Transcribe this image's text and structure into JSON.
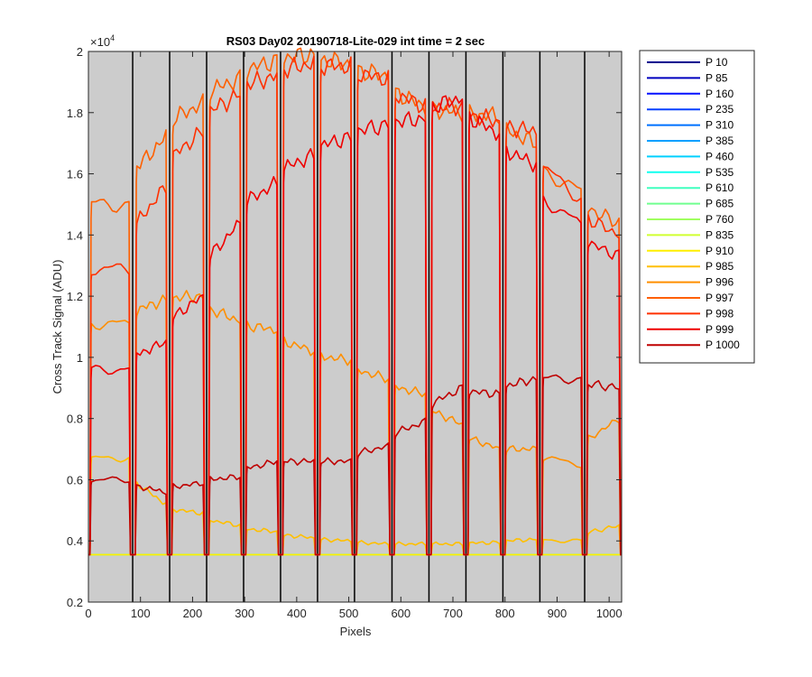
{
  "chart_data": {
    "type": "line",
    "title": "RS03 Day02 20190718-Lite-029 int time = 2 sec",
    "xlabel": "Pixels",
    "ylabel": "Cross Track Signal (ADU)",
    "y_exponent_label": "×10",
    "y_exponent_power": "4",
    "xlim": [
      0,
      1024
    ],
    "ylim": [
      0.2,
      2
    ],
    "y_multiplier": 10000,
    "xticks": [
      "0",
      "100",
      "200",
      "300",
      "400",
      "500",
      "600",
      "700",
      "800",
      "900",
      "1000"
    ],
    "yticks": [
      "0.2",
      "0.4",
      "0.6",
      "0.8",
      "1",
      "1.2",
      "1.4",
      "1.6",
      "1.8",
      "2"
    ],
    "xtick_values": [
      0,
      100,
      200,
      300,
      400,
      500,
      600,
      700,
      800,
      900,
      1000
    ],
    "ytick_values": [
      0.2,
      0.4,
      0.6,
      0.8,
      1.0,
      1.2,
      1.4,
      1.6,
      1.8,
      2.0
    ],
    "background_color": "#cccccc",
    "grid": false,
    "legend_position": "outside-right",
    "separators_x": [
      85,
      156,
      227,
      298,
      369,
      440,
      511,
      583,
      654,
      725,
      796,
      867,
      953
    ],
    "segments": [
      [
        3,
        81
      ],
      [
        90,
        152
      ],
      [
        160,
        223
      ],
      [
        231,
        294
      ],
      [
        302,
        365
      ],
      [
        373,
        436
      ],
      [
        444,
        507
      ],
      [
        515,
        579
      ],
      [
        587,
        650
      ],
      [
        658,
        721
      ],
      [
        729,
        792
      ],
      [
        800,
        863
      ],
      [
        871,
        949
      ],
      [
        957,
        1022
      ]
    ],
    "baseline": 0.355,
    "series": [
      {
        "name": "P 10",
        "color": "#00008f",
        "values": [
          0.355
        ]
      },
      {
        "name": "P 85",
        "color": "#0000bf",
        "values": [
          0.355
        ]
      },
      {
        "name": "P 160",
        "color": "#0010ff",
        "values": [
          0.355
        ]
      },
      {
        "name": "P 235",
        "color": "#0040ff",
        "values": [
          0.355
        ]
      },
      {
        "name": "P 310",
        "color": "#0070ff",
        "values": [
          0.355
        ]
      },
      {
        "name": "P 385",
        "color": "#00a0ff",
        "values": [
          0.355
        ]
      },
      {
        "name": "P 460",
        "color": "#00d0ff",
        "values": [
          0.355
        ]
      },
      {
        "name": "P 535",
        "color": "#10ffef",
        "values": [
          0.355
        ]
      },
      {
        "name": "P 610",
        "color": "#40ffbf",
        "values": [
          0.355
        ]
      },
      {
        "name": "P 685",
        "color": "#70ff8f",
        "values": [
          0.355
        ]
      },
      {
        "name": "P 760",
        "color": "#a0ff60",
        "values": [
          0.355
        ]
      },
      {
        "name": "P 835",
        "color": "#d0ff30",
        "values": [
          0.355
        ]
      },
      {
        "name": "P 910",
        "color": "#ffef00",
        "values": [
          0.355
        ]
      },
      {
        "name": "P 985",
        "color": "#ffbf00",
        "values": [
          0.67,
          0.52,
          0.49,
          0.45,
          0.43,
          0.41,
          0.4,
          0.39,
          0.39,
          0.39,
          0.395,
          0.405,
          0.4,
          0.45
        ]
      },
      {
        "name": "P 996",
        "color": "#ff8f00",
        "values": [
          1.11,
          1.19,
          1.2,
          1.12,
          1.09,
          1.02,
          0.99,
          0.93,
          0.88,
          0.78,
          0.7,
          0.7,
          0.65,
          0.8
        ]
      },
      {
        "name": "P 997",
        "color": "#ff6000",
        "values": [
          1.5,
          1.72,
          1.83,
          1.91,
          1.97,
          1.99,
          1.96,
          1.92,
          1.82,
          1.8,
          1.79,
          1.7,
          1.54,
          1.44
        ]
      },
      {
        "name": "P 998",
        "color": "#ff3000",
        "values": [
          1.29,
          1.56,
          1.74,
          1.86,
          1.92,
          1.96,
          1.95,
          1.91,
          1.82,
          1.82,
          1.77,
          1.74,
          1.52,
          1.4
        ]
      },
      {
        "name": "P 999",
        "color": "#ef0000",
        "values": [
          0.96,
          1.05,
          1.2,
          1.44,
          1.57,
          1.66,
          1.72,
          1.76,
          1.78,
          1.85,
          1.73,
          1.63,
          1.43,
          1.33
        ]
      },
      {
        "name": "P 1000",
        "color": "#bf0000",
        "values": [
          0.6,
          0.56,
          0.59,
          0.61,
          0.66,
          0.66,
          0.66,
          0.71,
          0.79,
          0.9,
          0.88,
          0.93,
          0.93,
          0.9
        ]
      }
    ]
  }
}
